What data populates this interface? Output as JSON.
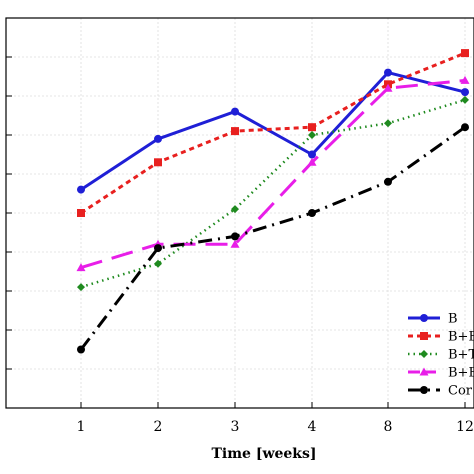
{
  "chart_data": {
    "type": "line",
    "xlabel": "Time [weeks]",
    "ylabel": "",
    "categories": [
      "1",
      "2",
      "3",
      "4",
      "8",
      "12"
    ],
    "ylim": [
      0,
      10
    ],
    "grid": true,
    "legend_placement": "bottom-right",
    "series": [
      {
        "name": "B",
        "color": "#1f1fd6",
        "values": [
          5.6,
          6.9,
          7.6,
          6.5,
          8.6,
          8.1
        ]
      },
      {
        "name": "B+E",
        "color": "#e8201f",
        "values": [
          5.0,
          6.3,
          7.1,
          7.2,
          8.3,
          9.1
        ]
      },
      {
        "name": "B+T",
        "color": "#1f8a1f",
        "values": [
          3.1,
          3.7,
          5.1,
          7.0,
          7.3,
          7.9
        ]
      },
      {
        "name": "B+E",
        "color": "#e81ee8",
        "values": [
          3.6,
          4.2,
          4.2,
          6.3,
          8.2,
          8.4
        ]
      },
      {
        "name": "Cor",
        "color": "#000000",
        "values": [
          1.5,
          4.1,
          4.4,
          5.0,
          5.8,
          7.2
        ]
      }
    ]
  }
}
